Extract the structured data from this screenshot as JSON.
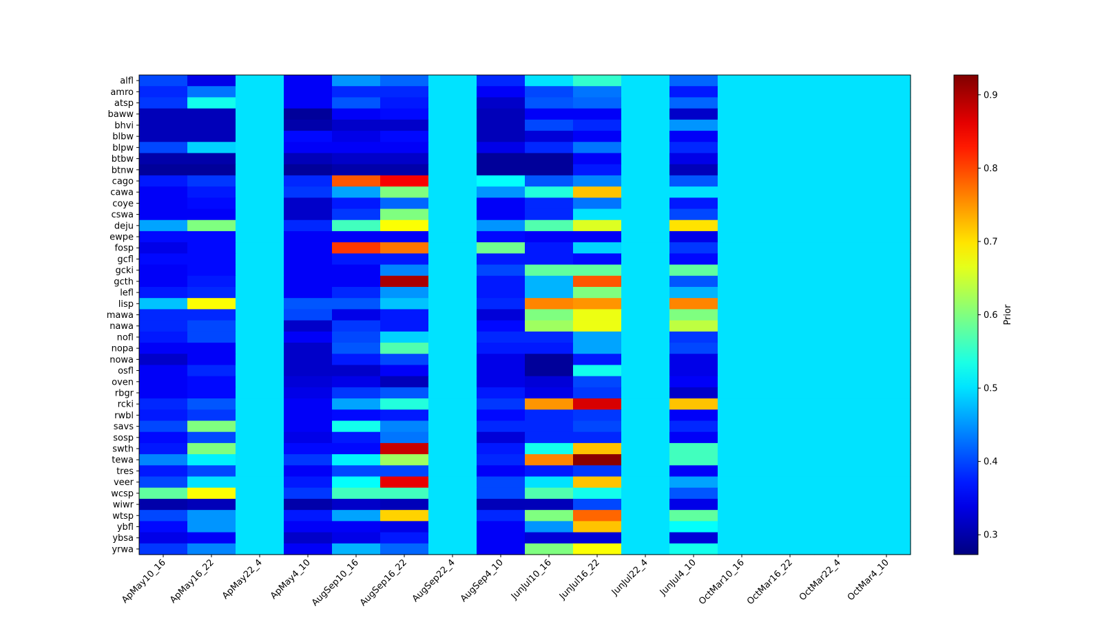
{
  "chart_data": {
    "type": "heatmap",
    "title": "",
    "xlabel": "",
    "ylabel": "",
    "colormap": "jet",
    "colorbar": {
      "label": "Prior",
      "min": 0.273,
      "max": 0.927,
      "ticks": [
        0.3,
        0.4,
        0.5,
        0.6,
        0.7,
        0.8,
        0.9
      ],
      "tick_labels": [
        "0.3",
        "0.4",
        "0.5",
        "0.6",
        "0.7",
        "0.8",
        "0.9"
      ]
    },
    "x_categories": [
      "ApMay10_16",
      "ApMay16_22",
      "ApMay22_4",
      "ApMay4_10",
      "AugSep10_16",
      "AugSep16_22",
      "AugSep22_4",
      "AugSep4_10",
      "JunJul10_16",
      "JunJul16_22",
      "JunJul22_4",
      "JunJul4_10",
      "OctMar10_16",
      "OctMar16_22",
      "OctMar22_4",
      "OctMar4_10"
    ],
    "y_categories": [
      "alfl",
      "amro",
      "atsp",
      "baww",
      "bhvi",
      "blbw",
      "blpw",
      "btbw",
      "btnw",
      "cago",
      "cawa",
      "coye",
      "cswa",
      "deju",
      "ewpe",
      "fosp",
      "gcfl",
      "gcki",
      "gcth",
      "lefl",
      "lisp",
      "mawa",
      "nawa",
      "nofl",
      "nopa",
      "nowa",
      "osfl",
      "oven",
      "rbgr",
      "rcki",
      "rwbl",
      "savs",
      "sosp",
      "swth",
      "tewa",
      "tres",
      "veer",
      "wcsp",
      "wiwr",
      "wtsp",
      "ybfl",
      "ybsa",
      "yrwa"
    ],
    "values": [
      [
        0.4,
        0.34,
        0.5,
        0.35,
        0.45,
        0.42,
        0.5,
        0.38,
        0.5,
        0.55,
        0.5,
        0.42,
        0.5,
        0.5,
        0.5,
        0.5
      ],
      [
        0.38,
        0.43,
        0.5,
        0.35,
        0.38,
        0.38,
        0.5,
        0.35,
        0.4,
        0.43,
        0.5,
        0.37,
        0.5,
        0.5,
        0.5,
        0.5
      ],
      [
        0.39,
        0.53,
        0.5,
        0.35,
        0.41,
        0.37,
        0.5,
        0.32,
        0.41,
        0.42,
        0.5,
        0.42,
        0.5,
        0.5,
        0.5,
        0.5
      ],
      [
        0.31,
        0.31,
        0.5,
        0.29,
        0.35,
        0.36,
        0.5,
        0.31,
        0.35,
        0.35,
        0.5,
        0.32,
        0.5,
        0.5,
        0.5,
        0.5
      ],
      [
        0.31,
        0.31,
        0.5,
        0.3,
        0.32,
        0.32,
        0.5,
        0.31,
        0.4,
        0.38,
        0.5,
        0.45,
        0.5,
        0.5,
        0.5,
        0.5
      ],
      [
        0.31,
        0.31,
        0.5,
        0.36,
        0.34,
        0.36,
        0.5,
        0.31,
        0.33,
        0.35,
        0.5,
        0.35,
        0.5,
        0.5,
        0.5,
        0.5
      ],
      [
        0.4,
        0.49,
        0.5,
        0.35,
        0.35,
        0.35,
        0.5,
        0.34,
        0.38,
        0.43,
        0.5,
        0.38,
        0.5,
        0.5,
        0.5,
        0.5
      ],
      [
        0.3,
        0.3,
        0.5,
        0.31,
        0.32,
        0.32,
        0.5,
        0.29,
        0.29,
        0.35,
        0.5,
        0.34,
        0.5,
        0.5,
        0.5,
        0.5
      ],
      [
        0.29,
        0.29,
        0.5,
        0.29,
        0.3,
        0.3,
        0.5,
        0.29,
        0.29,
        0.37,
        0.5,
        0.31,
        0.5,
        0.5,
        0.5,
        0.5
      ],
      [
        0.37,
        0.39,
        0.5,
        0.38,
        0.79,
        0.85,
        0.5,
        0.52,
        0.41,
        0.44,
        0.5,
        0.41,
        0.5,
        0.5,
        0.5,
        0.5
      ],
      [
        0.35,
        0.37,
        0.5,
        0.39,
        0.46,
        0.6,
        0.5,
        0.45,
        0.54,
        0.72,
        0.5,
        0.5,
        0.5,
        0.5,
        0.5,
        0.5
      ],
      [
        0.35,
        0.36,
        0.5,
        0.32,
        0.37,
        0.42,
        0.5,
        0.35,
        0.38,
        0.43,
        0.5,
        0.37,
        0.5,
        0.5,
        0.5,
        0.5
      ],
      [
        0.35,
        0.35,
        0.5,
        0.32,
        0.39,
        0.6,
        0.5,
        0.35,
        0.38,
        0.5,
        0.5,
        0.4,
        0.5,
        0.5,
        0.5,
        0.5
      ],
      [
        0.46,
        0.6,
        0.5,
        0.38,
        0.56,
        0.68,
        0.5,
        0.45,
        0.57,
        0.66,
        0.5,
        0.7,
        0.5,
        0.5,
        0.5,
        0.5
      ],
      [
        0.36,
        0.36,
        0.5,
        0.35,
        0.35,
        0.35,
        0.5,
        0.36,
        0.35,
        0.35,
        0.5,
        0.34,
        0.5,
        0.5,
        0.5,
        0.5
      ],
      [
        0.34,
        0.36,
        0.5,
        0.35,
        0.81,
        0.77,
        0.5,
        0.59,
        0.37,
        0.49,
        0.5,
        0.39,
        0.5,
        0.5,
        0.5,
        0.5
      ],
      [
        0.36,
        0.36,
        0.5,
        0.35,
        0.37,
        0.37,
        0.5,
        0.37,
        0.37,
        0.36,
        0.5,
        0.36,
        0.5,
        0.5,
        0.5,
        0.5
      ],
      [
        0.35,
        0.36,
        0.5,
        0.35,
        0.35,
        0.44,
        0.5,
        0.4,
        0.58,
        0.58,
        0.5,
        0.58,
        0.5,
        0.5,
        0.5,
        0.5
      ],
      [
        0.35,
        0.37,
        0.5,
        0.35,
        0.35,
        0.9,
        0.5,
        0.37,
        0.47,
        0.79,
        0.5,
        0.41,
        0.5,
        0.5,
        0.5,
        0.5
      ],
      [
        0.37,
        0.38,
        0.5,
        0.35,
        0.38,
        0.45,
        0.5,
        0.37,
        0.47,
        0.6,
        0.5,
        0.47,
        0.5,
        0.5,
        0.5,
        0.5
      ],
      [
        0.48,
        0.68,
        0.5,
        0.41,
        0.41,
        0.48,
        0.5,
        0.38,
        0.76,
        0.75,
        0.5,
        0.76,
        0.5,
        0.5,
        0.5,
        0.5
      ],
      [
        0.38,
        0.38,
        0.5,
        0.4,
        0.34,
        0.37,
        0.5,
        0.33,
        0.6,
        0.67,
        0.5,
        0.6,
        0.5,
        0.5,
        0.5,
        0.5
      ],
      [
        0.38,
        0.4,
        0.5,
        0.32,
        0.39,
        0.37,
        0.5,
        0.36,
        0.62,
        0.67,
        0.5,
        0.64,
        0.5,
        0.5,
        0.5,
        0.5
      ],
      [
        0.37,
        0.4,
        0.5,
        0.35,
        0.4,
        0.49,
        0.5,
        0.38,
        0.38,
        0.46,
        0.5,
        0.39,
        0.5,
        0.5,
        0.5,
        0.5
      ],
      [
        0.35,
        0.35,
        0.5,
        0.32,
        0.41,
        0.57,
        0.5,
        0.37,
        0.37,
        0.46,
        0.5,
        0.4,
        0.5,
        0.5,
        0.5,
        0.5
      ],
      [
        0.32,
        0.35,
        0.5,
        0.32,
        0.37,
        0.4,
        0.5,
        0.34,
        0.29,
        0.37,
        0.5,
        0.34,
        0.5,
        0.5,
        0.5,
        0.5
      ],
      [
        0.35,
        0.38,
        0.5,
        0.32,
        0.32,
        0.35,
        0.5,
        0.34,
        0.29,
        0.53,
        0.5,
        0.34,
        0.5,
        0.5,
        0.5,
        0.5
      ],
      [
        0.35,
        0.36,
        0.5,
        0.33,
        0.34,
        0.31,
        0.5,
        0.34,
        0.33,
        0.4,
        0.5,
        0.35,
        0.5,
        0.5,
        0.5,
        0.5
      ],
      [
        0.35,
        0.36,
        0.5,
        0.34,
        0.39,
        0.41,
        0.5,
        0.37,
        0.34,
        0.39,
        0.5,
        0.32,
        0.5,
        0.5,
        0.5,
        0.5
      ],
      [
        0.38,
        0.41,
        0.5,
        0.35,
        0.46,
        0.54,
        0.5,
        0.39,
        0.75,
        0.87,
        0.5,
        0.72,
        0.5,
        0.5,
        0.5,
        0.5
      ],
      [
        0.37,
        0.39,
        0.5,
        0.35,
        0.36,
        0.37,
        0.5,
        0.36,
        0.38,
        0.39,
        0.5,
        0.35,
        0.5,
        0.5,
        0.5,
        0.5
      ],
      [
        0.4,
        0.6,
        0.5,
        0.35,
        0.53,
        0.44,
        0.5,
        0.38,
        0.38,
        0.4,
        0.5,
        0.38,
        0.5,
        0.5,
        0.5,
        0.5
      ],
      [
        0.36,
        0.4,
        0.5,
        0.34,
        0.37,
        0.43,
        0.5,
        0.33,
        0.38,
        0.38,
        0.5,
        0.35,
        0.5,
        0.5,
        0.5,
        0.5
      ],
      [
        0.37,
        0.6,
        0.5,
        0.36,
        0.36,
        0.88,
        0.5,
        0.37,
        0.53,
        0.72,
        0.5,
        0.56,
        0.5,
        0.5,
        0.5,
        0.5
      ],
      [
        0.44,
        0.51,
        0.5,
        0.39,
        0.51,
        0.62,
        0.5,
        0.38,
        0.76,
        0.92,
        0.5,
        0.56,
        0.5,
        0.5,
        0.5,
        0.5
      ],
      [
        0.37,
        0.4,
        0.5,
        0.35,
        0.4,
        0.4,
        0.5,
        0.35,
        0.37,
        0.39,
        0.5,
        0.35,
        0.5,
        0.5,
        0.5,
        0.5
      ],
      [
        0.4,
        0.5,
        0.5,
        0.37,
        0.52,
        0.86,
        0.5,
        0.4,
        0.5,
        0.72,
        0.5,
        0.46,
        0.5,
        0.5,
        0.5,
        0.5
      ],
      [
        0.58,
        0.68,
        0.5,
        0.39,
        0.56,
        0.56,
        0.5,
        0.4,
        0.57,
        0.53,
        0.5,
        0.41,
        0.5,
        0.5,
        0.5,
        0.5
      ],
      [
        0.3,
        0.31,
        0.5,
        0.3,
        0.32,
        0.31,
        0.5,
        0.31,
        0.31,
        0.4,
        0.5,
        0.34,
        0.5,
        0.5,
        0.5,
        0.5
      ],
      [
        0.4,
        0.45,
        0.5,
        0.37,
        0.46,
        0.71,
        0.5,
        0.38,
        0.6,
        0.78,
        0.5,
        0.58,
        0.5,
        0.5,
        0.5,
        0.5
      ],
      [
        0.36,
        0.45,
        0.5,
        0.35,
        0.35,
        0.34,
        0.5,
        0.35,
        0.45,
        0.72,
        0.5,
        0.52,
        0.5,
        0.5,
        0.5,
        0.5
      ],
      [
        0.34,
        0.35,
        0.5,
        0.32,
        0.34,
        0.37,
        0.5,
        0.35,
        0.33,
        0.33,
        0.5,
        0.33,
        0.5,
        0.5,
        0.5,
        0.5
      ],
      [
        0.39,
        0.44,
        0.5,
        0.35,
        0.47,
        0.42,
        0.5,
        0.35,
        0.6,
        0.68,
        0.5,
        0.53,
        0.5,
        0.5,
        0.5,
        0.5
      ]
    ]
  }
}
